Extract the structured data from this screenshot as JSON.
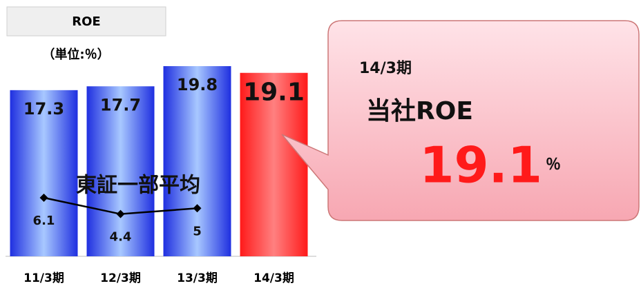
{
  "chart_data": {
    "type": "bar",
    "title": "ROE",
    "unit_label": "（単位:％）",
    "categories": [
      "11/3期",
      "12/3期",
      "13/3期",
      "14/3期"
    ],
    "ylim": [
      0,
      25
    ],
    "series": [
      {
        "type": "bar",
        "colors": [
          "#1f2fe0",
          "#1f2fe0",
          "#1f2fe0",
          "#ff1a1a"
        ],
        "values": [
          17.3,
          17.7,
          19.8,
          19.1
        ]
      },
      {
        "type": "line",
        "name": "東証一部平均",
        "color": "#000000",
        "values": [
          6.1,
          4.4,
          5.0,
          null
        ]
      }
    ],
    "callout": {
      "period": "14/3期",
      "label": "当社ROE",
      "value": 19.1,
      "unit": "％"
    }
  }
}
